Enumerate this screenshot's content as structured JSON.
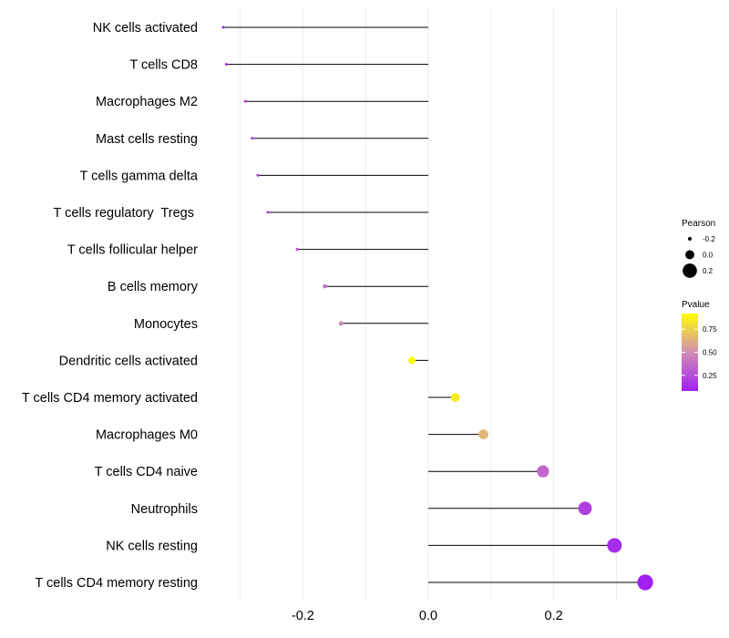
{
  "chart_data": {
    "type": "lollipop",
    "title": "",
    "xlabel": "",
    "ylabel": "",
    "xlim": [
      -0.35,
      0.36
    ],
    "x_ticks": [
      {
        "value": -0.2,
        "label": "-0.2"
      },
      {
        "value": 0.0,
        "label": "0.0"
      },
      {
        "value": 0.2,
        "label": "0.2"
      }
    ],
    "grid": true,
    "categories": [
      {
        "label": "NK cells activated",
        "pearson": -0.327,
        "pvalue": 0.1
      },
      {
        "label": "T cells CD8",
        "pearson": -0.322,
        "pvalue": 0.1
      },
      {
        "label": "Macrophages M2",
        "pearson": -0.292,
        "pvalue": 0.15
      },
      {
        "label": "Mast cells resting",
        "pearson": -0.281,
        "pvalue": 0.18
      },
      {
        "label": "T cells gamma delta",
        "pearson": -0.272,
        "pvalue": 0.2
      },
      {
        "label": "T cells regulatory  Tregs ",
        "pearson": -0.256,
        "pvalue": 0.22
      },
      {
        "label": "T cells follicular helper",
        "pearson": -0.209,
        "pvalue": 0.3
      },
      {
        "label": "B cells memory",
        "pearson": -0.165,
        "pvalue": 0.4
      },
      {
        "label": "Monocytes",
        "pearson": -0.139,
        "pvalue": 0.48
      },
      {
        "label": "Dendritic cells activated",
        "pearson": -0.026,
        "pvalue": 0.9
      },
      {
        "label": "T cells CD4 memory activated",
        "pearson": 0.043,
        "pvalue": 0.85
      },
      {
        "label": "Macrophages M0",
        "pearson": 0.088,
        "pvalue": 0.65
      },
      {
        "label": "T cells CD4 naive",
        "pearson": 0.183,
        "pvalue": 0.35
      },
      {
        "label": "Neutrophils",
        "pearson": 0.25,
        "pvalue": 0.2
      },
      {
        "label": "NK cells resting",
        "pearson": 0.297,
        "pvalue": 0.13
      },
      {
        "label": "T cells CD4 memory resting",
        "pearson": 0.346,
        "pvalue": 0.08
      }
    ],
    "legend_size": {
      "title": "Pearson",
      "placement": "right",
      "entries": [
        {
          "value": -0.2,
          "label": "-0.2"
        },
        {
          "value": 0.0,
          "label": "0.0"
        },
        {
          "value": 0.2,
          "label": "0.2"
        }
      ]
    },
    "legend_color": {
      "title": "Pvalue",
      "placement": "right",
      "range": [
        0.08,
        0.92
      ],
      "ticks": [
        {
          "value": 0.75,
          "label": "0.75"
        },
        {
          "value": 0.5,
          "label": "0.50"
        },
        {
          "value": 0.25,
          "label": "0.25"
        }
      ],
      "low_color": "#a020f0",
      "mid_color": "#d38eb6",
      "high_color": "#ffff00"
    },
    "colors": {
      "stem": "#000000",
      "grid": "#ebebeb"
    }
  }
}
